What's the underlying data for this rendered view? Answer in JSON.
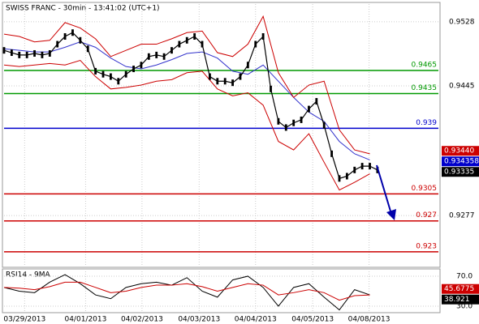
{
  "chart_data": {
    "type": "ohlc-indicator",
    "title": "SWISS FRANC - 30min - 13:41:02 (UTC+1)",
    "xlim": [
      0,
      57
    ],
    "xticks": [
      {
        "value": 2.7,
        "label": "03/29/2013"
      },
      {
        "value": 10.7,
        "label": "04/01/2013"
      },
      {
        "value": 18.1,
        "label": "04/02/2013"
      },
      {
        "value": 25.6,
        "label": "04/03/2013"
      },
      {
        "value": 33,
        "label": "04/04/2013"
      },
      {
        "value": 40.5,
        "label": "04/05/2013"
      },
      {
        "value": 47.9,
        "label": "04/08/2013"
      }
    ],
    "ylim": [
      0.9212,
      0.9551
    ],
    "yticks": [
      0.9528,
      0.9445,
      0.9277
    ],
    "price": {
      "color": "#000000",
      "values": [
        0.9491,
        0.9488,
        0.9485,
        0.9485,
        0.9487,
        0.9485,
        0.9487,
        0.9499,
        0.9509,
        0.9514,
        0.9504,
        0.9493,
        0.9464,
        0.946,
        0.9457,
        0.9451,
        0.946,
        0.9467,
        0.9472,
        0.9483,
        0.9485,
        0.9483,
        0.9491,
        0.9499,
        0.9504,
        0.9509,
        0.9499,
        0.9457,
        0.9451,
        0.9451,
        0.9449,
        0.9457,
        0.9472,
        0.9499,
        0.9509,
        0.9441,
        0.9399,
        0.9391,
        0.9397,
        0.9401,
        0.9415,
        0.9425,
        0.9394,
        0.9357,
        0.9325,
        0.9328,
        0.9336,
        0.9341,
        0.9341,
        0.9336
      ]
    },
    "series": [
      {
        "color": "#3333cc",
        "x": [
          0,
          2,
          4,
          6,
          8,
          10,
          12,
          14,
          16,
          18,
          20,
          22,
          24,
          26,
          28,
          30,
          32,
          34,
          36,
          38,
          40,
          42,
          44,
          46,
          48
        ],
        "values": [
          0.9493,
          0.9491,
          0.9489,
          0.9489,
          0.9495,
          0.9502,
          0.9495,
          0.9481,
          0.947,
          0.9467,
          0.9472,
          0.9479,
          0.9487,
          0.9489,
          0.9481,
          0.9464,
          0.946,
          0.9472,
          0.9451,
          0.943,
          0.9411,
          0.9399,
          0.9373,
          0.9357,
          0.9349
        ]
      },
      {
        "color": "#cc0000",
        "x": [
          0,
          2,
          4,
          6,
          8,
          10,
          12,
          14,
          16,
          18,
          20,
          22,
          24,
          26,
          28,
          30,
          32,
          34,
          36,
          38,
          40,
          42,
          44,
          46,
          48
        ],
        "values": [
          0.9512,
          0.9509,
          0.9502,
          0.9504,
          0.9527,
          0.952,
          0.9506,
          0.9483,
          0.9491,
          0.9499,
          0.9499,
          0.9506,
          0.9514,
          0.9516,
          0.9488,
          0.9483,
          0.9499,
          0.9535,
          0.9462,
          0.943,
          0.9446,
          0.9451,
          0.9388,
          0.9362,
          0.9357
        ]
      },
      {
        "color": "#cc0000",
        "x": [
          0,
          2,
          4,
          6,
          8,
          10,
          12,
          14,
          16,
          18,
          20,
          22,
          24,
          26,
          28,
          30,
          32,
          34,
          36,
          38,
          40,
          42,
          44,
          46,
          48
        ],
        "values": [
          0.9472,
          0.947,
          0.9472,
          0.9474,
          0.9472,
          0.9478,
          0.9457,
          0.9441,
          0.9443,
          0.9446,
          0.9451,
          0.9453,
          0.9462,
          0.9464,
          0.9441,
          0.9432,
          0.9436,
          0.942,
          0.9373,
          0.9362,
          0.9383,
          0.9346,
          0.931,
          0.932,
          0.9331
        ]
      }
    ],
    "levels": [
      {
        "value": 0.9465,
        "color": "#009900"
      },
      {
        "value": 0.9435,
        "color": "#009900"
      },
      {
        "value": 0.939,
        "color": "#0000cc"
      },
      {
        "value": 0.9305,
        "color": "#cc0000"
      },
      {
        "value": 0.927,
        "color": "#cc0000"
      },
      {
        "value": 0.923,
        "color": "#cc0000"
      }
    ],
    "price_tags": [
      {
        "value": 0.9344,
        "label": "0.93440",
        "color": "#cc0000"
      },
      {
        "value": 0.934358,
        "label": "0.934358",
        "color": "#0000cc"
      },
      {
        "value": 0.93335,
        "label": "0.93335",
        "color": "#000000"
      }
    ],
    "rsi": {
      "title": "RSI14 - 9MA",
      "ylim": [
        22.4,
        78.6
      ],
      "yticks": [
        {
          "value": 70,
          "label": "70.0"
        },
        {
          "value": 30,
          "label": "30.0"
        }
      ],
      "series": [
        {
          "color": "#000000",
          "x": [
            0,
            2,
            4,
            6,
            8,
            10,
            12,
            14,
            16,
            18,
            20,
            22,
            24,
            26,
            28,
            30,
            32,
            34,
            36,
            38,
            40,
            42,
            44,
            46,
            48
          ],
          "values": [
            55,
            50,
            48,
            62,
            72,
            60,
            45,
            40,
            55,
            60,
            62,
            58,
            68,
            50,
            42,
            65,
            70,
            55,
            30,
            55,
            60,
            42,
            25,
            52,
            45
          ]
        },
        {
          "color": "#cc0000",
          "x": [
            0,
            2,
            4,
            6,
            8,
            10,
            12,
            14,
            16,
            18,
            20,
            22,
            24,
            26,
            28,
            30,
            32,
            34,
            36,
            38,
            40,
            42,
            44,
            46,
            48
          ],
          "values": [
            55,
            54,
            52,
            56,
            62,
            62,
            55,
            48,
            50,
            55,
            58,
            58,
            60,
            56,
            50,
            55,
            60,
            58,
            45,
            48,
            52,
            48,
            38,
            44,
            45
          ]
        }
      ],
      "tags": [
        {
          "value": 45.6775,
          "color": "#cc0000"
        },
        {
          "value": 38.921,
          "color": "#000000"
        }
      ]
    }
  }
}
